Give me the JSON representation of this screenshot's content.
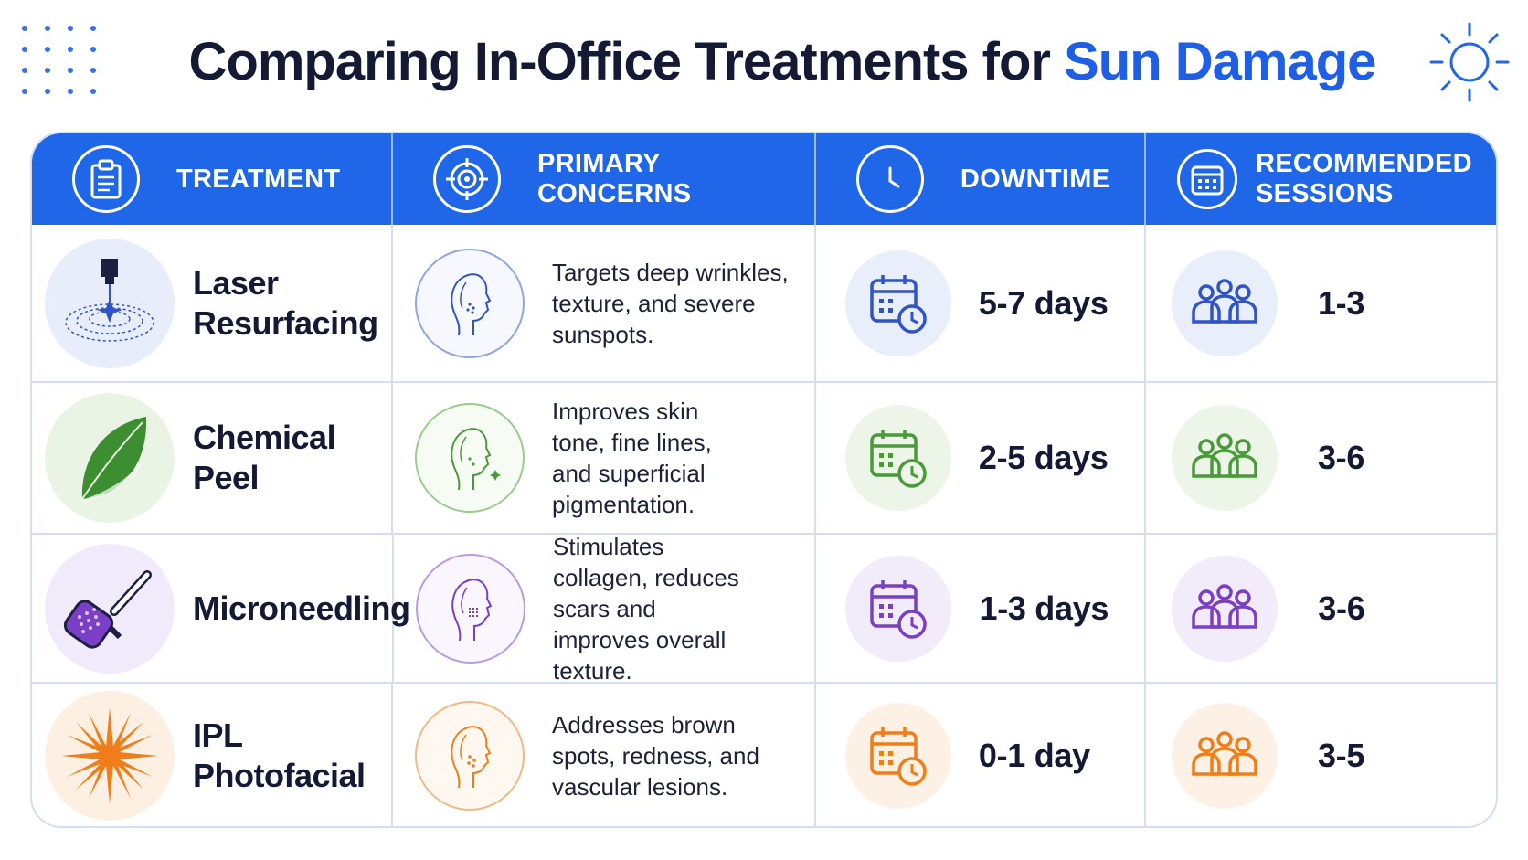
{
  "header": {
    "title_main": "Comparing In-Office Treatments for",
    "title_accent": "Sun Damage"
  },
  "colors": {
    "accent_blue": "#1f66e9",
    "laser": "#2e54c8",
    "peel": "#4a9a3a",
    "microneedling": "#7a3fc6",
    "ipl": "#ef7d1a"
  },
  "columns": [
    {
      "label": "TREATMENT",
      "icon": "clipboard-icon"
    },
    {
      "label": "PRIMARY CONCERNS",
      "icon": "target-icon"
    },
    {
      "label": "DOWNTIME",
      "icon": "clock-icon"
    },
    {
      "label": "RECOMMENDED SESSIONS",
      "icon": "calendar-icon"
    }
  ],
  "rows": [
    {
      "treatment": "Laser Resurfacing",
      "treatment_icon": "laser-icon",
      "concerns": "Targets deep wrinkles, texture, and severe sunspots.",
      "downtime": "5-7 days",
      "sessions": "1-3"
    },
    {
      "treatment": "Chemical Peel",
      "treatment_icon": "leaf-icon",
      "concerns": "Improves skin tone, fine lines, and superficial pigmentation.",
      "downtime": "2-5 days",
      "sessions": "3-6"
    },
    {
      "treatment": "Microneedling",
      "treatment_icon": "derma-roller-icon",
      "concerns": "Stimulates collagen, reduces scars and improves overall texture.",
      "downtime": "1-3 days",
      "sessions": "3-6"
    },
    {
      "treatment": "IPL Photofacial",
      "treatment_icon": "light-burst-icon",
      "concerns": "Addresses brown spots, redness, and vascular lesions.",
      "downtime": "0-1 day",
      "sessions": "3-5"
    }
  ]
}
